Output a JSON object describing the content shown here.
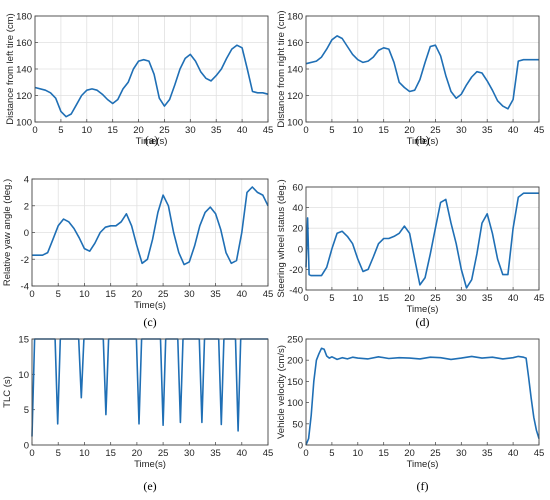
{
  "chart_data": [
    {
      "type": "line",
      "title": "",
      "caption": "(a)",
      "xlabel": "Time(s)",
      "ylabel": "Distance from left tire (cm)",
      "xlim": [
        0,
        45
      ],
      "ylim": [
        100,
        180
      ],
      "xticks": [
        0,
        5,
        10,
        15,
        20,
        25,
        30,
        35,
        40,
        45
      ],
      "yticks": [
        100,
        120,
        140,
        160,
        180
      ],
      "grid": true,
      "color": "#1f6fb5",
      "series": [
        {
          "x": [
            0,
            2,
            3,
            4,
            5,
            6,
            7,
            8,
            9,
            10,
            11,
            12,
            13,
            14,
            15,
            16,
            17,
            18,
            19,
            20,
            21,
            22,
            23,
            24,
            25,
            26,
            27,
            28,
            29,
            30,
            31,
            32,
            33,
            34,
            35,
            36,
            37,
            38,
            39,
            40,
            41,
            42,
            43,
            44,
            45
          ],
          "y": [
            126,
            124,
            122,
            118,
            108,
            104,
            106,
            113,
            120,
            124,
            125,
            124,
            121,
            117,
            114,
            117,
            125,
            130,
            140,
            146,
            147,
            146,
            136,
            118,
            112,
            117,
            128,
            140,
            148,
            151,
            146,
            138,
            133,
            131,
            135,
            140,
            148,
            155,
            158,
            156,
            140,
            123,
            122,
            122,
            121
          ]
        }
      ]
    },
    {
      "type": "line",
      "title": "",
      "caption": "(b)",
      "xlabel": "Time(s)",
      "ylabel": "Distance from right tire (cm)",
      "xlim": [
        0,
        45
      ],
      "ylim": [
        100,
        180
      ],
      "xticks": [
        0,
        5,
        10,
        15,
        20,
        25,
        30,
        35,
        40,
        45
      ],
      "yticks": [
        100,
        120,
        140,
        160,
        180
      ],
      "grid": true,
      "color": "#1f6fb5",
      "series": [
        {
          "x": [
            0,
            2,
            3,
            4,
            5,
            6,
            7,
            8,
            9,
            10,
            11,
            12,
            13,
            14,
            15,
            16,
            17,
            18,
            19,
            20,
            21,
            22,
            23,
            24,
            25,
            26,
            27,
            28,
            29,
            30,
            31,
            32,
            33,
            34,
            35,
            36,
            37,
            38,
            39,
            40,
            41,
            42,
            43,
            44,
            45
          ],
          "y": [
            144,
            146,
            149,
            155,
            162,
            165,
            163,
            157,
            151,
            147,
            145,
            146,
            149,
            154,
            156,
            155,
            145,
            130,
            126,
            123,
            124,
            132,
            145,
            157,
            158,
            150,
            135,
            123,
            118,
            121,
            128,
            134,
            138,
            137,
            131,
            124,
            116,
            112,
            110,
            117,
            146,
            147,
            147,
            147,
            147
          ]
        }
      ]
    },
    {
      "type": "line",
      "title": "",
      "caption": "(c)",
      "xlabel": "Time(s)",
      "ylabel": "Relative yaw angle (deg.)",
      "xlim": [
        0,
        45
      ],
      "ylim": [
        -4,
        4
      ],
      "xticks": [
        0,
        5,
        10,
        15,
        20,
        25,
        30,
        35,
        40,
        45
      ],
      "yticks": [
        -4,
        -2,
        0,
        2,
        4
      ],
      "grid": true,
      "color": "#1f6fb5",
      "series": [
        {
          "x": [
            0,
            2,
            3,
            4,
            5,
            6,
            7,
            8,
            9,
            10,
            11,
            12,
            13,
            14,
            15,
            16,
            17,
            18,
            19,
            20,
            21,
            22,
            23,
            24,
            25,
            26,
            27,
            28,
            29,
            30,
            31,
            32,
            33,
            34,
            35,
            36,
            37,
            38,
            39,
            40,
            41,
            42,
            43,
            44,
            45
          ],
          "y": [
            -1.7,
            -1.7,
            -1.5,
            -0.5,
            0.5,
            1.0,
            0.8,
            0.3,
            -0.4,
            -1.2,
            -1.4,
            -0.8,
            0.0,
            0.4,
            0.5,
            0.5,
            0.8,
            1.4,
            0.5,
            -1.0,
            -2.3,
            -2.0,
            -0.5,
            1.5,
            2.8,
            2.0,
            0.0,
            -1.5,
            -2.4,
            -2.2,
            -1.0,
            0.5,
            1.5,
            1.9,
            1.4,
            0.2,
            -1.5,
            -2.3,
            -2.1,
            0.0,
            3.0,
            3.4,
            3.0,
            2.8,
            2.0
          ]
        }
      ]
    },
    {
      "type": "line",
      "title": "",
      "caption": "(d)",
      "xlabel": "Time(s)",
      "ylabel": "Steering wheel status (deg.)",
      "xlim": [
        0,
        45
      ],
      "ylim": [
        -40,
        60
      ],
      "xticks": [
        0,
        5,
        10,
        15,
        20,
        25,
        30,
        35,
        40,
        45
      ],
      "yticks": [
        -40,
        -20,
        0,
        20,
        40,
        60
      ],
      "grid": true,
      "color": "#1f6fb5",
      "series": [
        {
          "x": [
            0,
            0.3,
            0.6,
            1,
            2,
            3,
            4,
            5,
            6,
            7,
            8,
            9,
            10,
            11,
            12,
            13,
            14,
            15,
            16,
            17,
            18,
            19,
            20,
            21,
            22,
            23,
            24,
            25,
            26,
            27,
            28,
            29,
            30,
            31,
            32,
            33,
            34,
            35,
            36,
            37,
            38,
            39,
            40,
            41,
            42,
            43,
            44,
            45
          ],
          "y": [
            -18,
            30,
            -25,
            -26,
            -26,
            -26,
            -18,
            0,
            15,
            17,
            12,
            5,
            -10,
            -22,
            -20,
            -8,
            5,
            10,
            10,
            12,
            15,
            22,
            15,
            -10,
            -35,
            -28,
            -5,
            20,
            45,
            48,
            25,
            5,
            -20,
            -38,
            -30,
            -5,
            25,
            34,
            15,
            -10,
            -25,
            -25,
            20,
            50,
            54,
            54,
            54,
            54
          ]
        }
      ]
    },
    {
      "type": "line",
      "title": "",
      "caption": "(e)",
      "xlabel": "Time(s)",
      "ylabel": "TLC (s)",
      "xlim": [
        0,
        45
      ],
      "ylim": [
        0,
        15
      ],
      "xticks": [
        0,
        5,
        10,
        15,
        20,
        25,
        30,
        35,
        40,
        45
      ],
      "yticks": [
        0,
        5,
        10,
        15
      ],
      "grid": false,
      "color": "#1f6fb5",
      "series": [
        {
          "x": [
            0,
            0.5,
            4.4,
            4.9,
            5.4,
            8.9,
            9.4,
            9.9,
            13.6,
            14.1,
            14.6,
            19.9,
            20.4,
            20.9,
            24.5,
            25.0,
            25.5,
            27.8,
            28.3,
            28.8,
            31.9,
            32.4,
            32.9,
            35.6,
            36.1,
            36.6,
            38.8,
            39.3,
            39.8,
            45
          ],
          "y": [
            1.2,
            15,
            15,
            3.0,
            15,
            15,
            6.7,
            15,
            15,
            4.3,
            15,
            15,
            3.0,
            15,
            15,
            2.8,
            15,
            15,
            3.2,
            15,
            15,
            3.2,
            15,
            15,
            2.9,
            15,
            15,
            2.0,
            15,
            15
          ]
        }
      ]
    },
    {
      "type": "line",
      "title": "",
      "caption": "(f)",
      "xlabel": "Time(s)",
      "ylabel": "Vehicle velocity (cm/s)",
      "xlim": [
        0,
        45
      ],
      "ylim": [
        0,
        250
      ],
      "xticks": [
        0,
        5,
        10,
        15,
        20,
        25,
        30,
        35,
        40,
        45
      ],
      "yticks": [
        0,
        50,
        100,
        150,
        200,
        250
      ],
      "grid": false,
      "color": "#1f6fb5",
      "series": [
        {
          "x": [
            0,
            0.5,
            1,
            1.5,
            2,
            2.5,
            3,
            3.5,
            4,
            4.5,
            5,
            6,
            7,
            8,
            9,
            10,
            12,
            14,
            16,
            18,
            20,
            22,
            24,
            26,
            28,
            30,
            32,
            34,
            36,
            38,
            40,
            41,
            42,
            42.5,
            43,
            43.5,
            44,
            44.5,
            45
          ],
          "y": [
            0,
            15,
            70,
            150,
            200,
            215,
            228,
            226,
            210,
            205,
            208,
            202,
            206,
            203,
            207,
            205,
            203,
            208,
            204,
            206,
            205,
            203,
            207,
            206,
            202,
            205,
            209,
            205,
            207,
            203,
            206,
            209,
            207,
            205,
            160,
            110,
            65,
            35,
            15
          ]
        }
      ]
    }
  ]
}
